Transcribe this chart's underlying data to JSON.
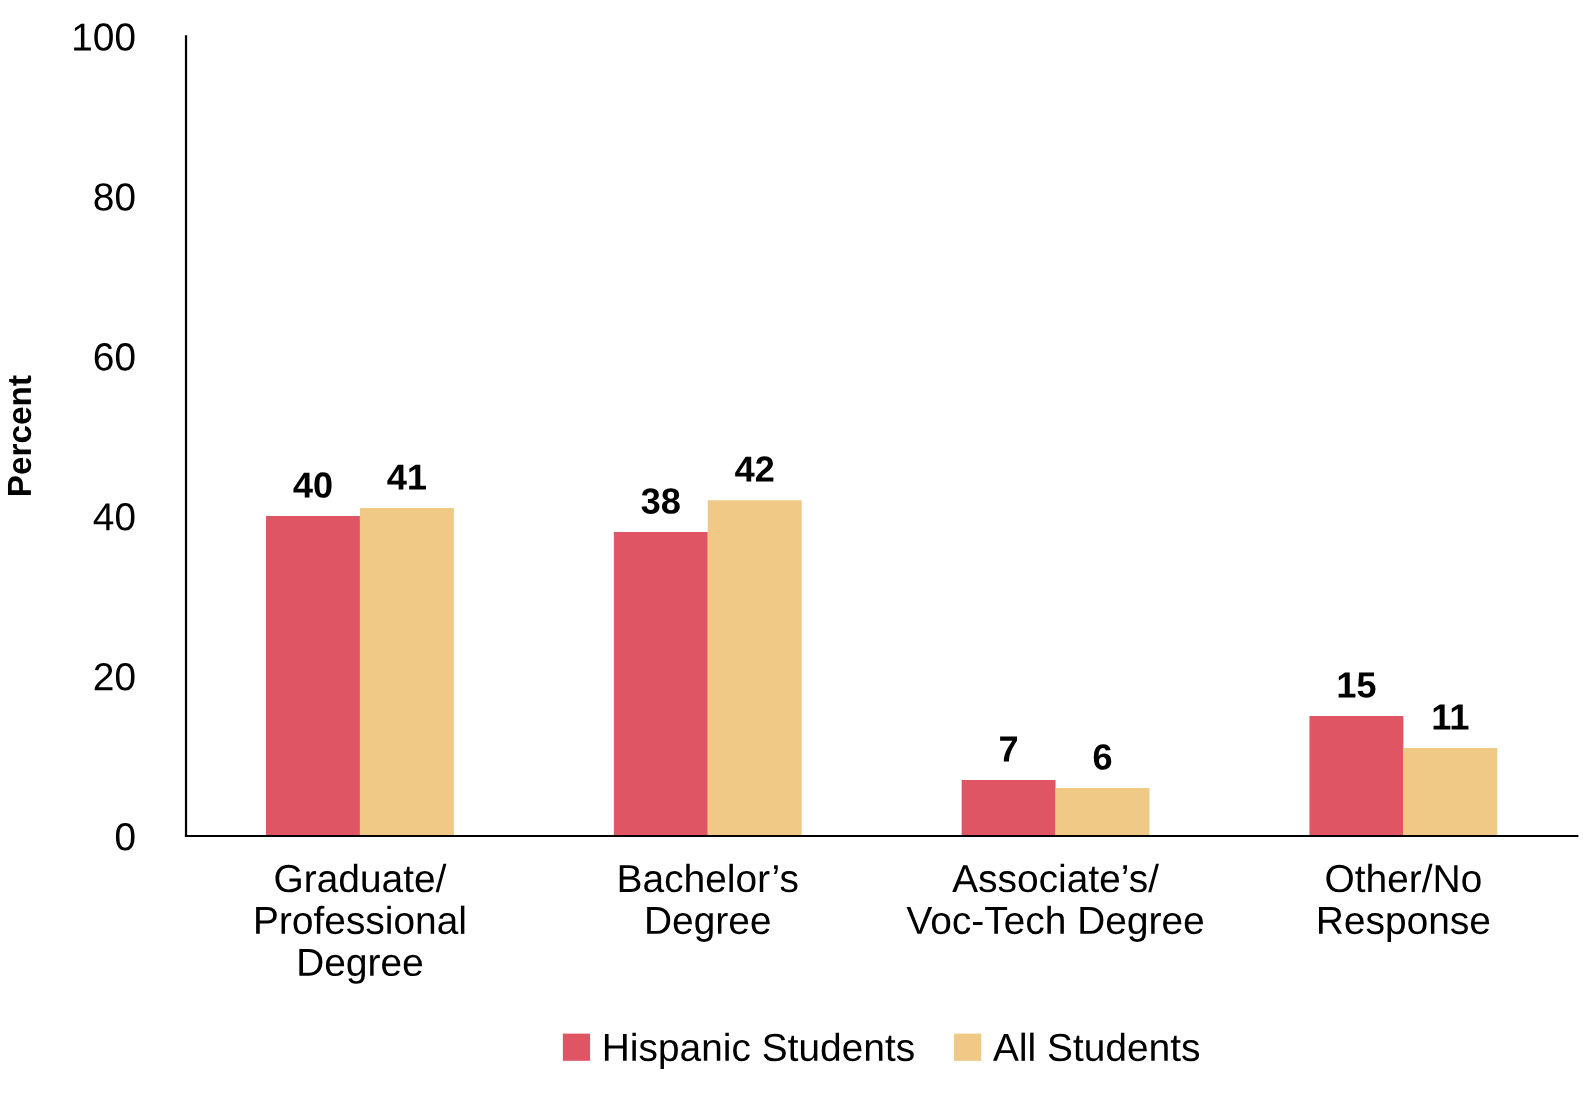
{
  "chart_data": {
    "type": "bar",
    "ylabel": "Percent",
    "categories": [
      "Graduate/\nProfessional\nDegree",
      "Bachelor’s\nDegree",
      "Associate’s/\nVoc-Tech Degree",
      "Other/No\nResponse"
    ],
    "series": [
      {
        "name": "Hispanic Students",
        "color": "#e05563",
        "values": [
          40,
          38,
          7,
          15
        ]
      },
      {
        "name": "All Students",
        "color": "#efc985",
        "values": [
          41,
          42,
          6,
          11
        ]
      }
    ],
    "ylim": [
      0,
      100
    ],
    "yticks": [
      0,
      20,
      40,
      60,
      80,
      100
    ],
    "grid": false,
    "legend": "bottom",
    "data_labels": true
  }
}
